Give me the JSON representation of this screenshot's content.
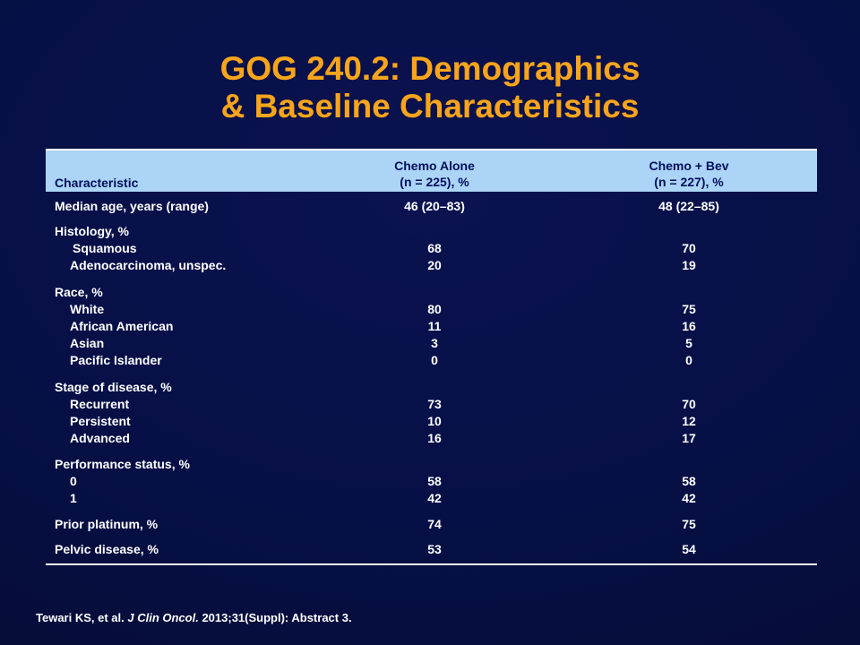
{
  "slide": {
    "title_line1": "GOG 240.2: Demographics",
    "title_line2": "& Baseline Characteristics"
  },
  "table": {
    "header": {
      "characteristic": "Characteristic",
      "col1_line1": "Chemo Alone",
      "col1_line2": "(n = 225), %",
      "col2_line1": "Chemo + Bev",
      "col2_line2": "(n = 227), %"
    },
    "rows": [
      {
        "label": "Median age, years (range)",
        "v1": "46 (20–83)",
        "v2": "48 (22–85)"
      },
      {
        "label": "Histology, %",
        "v1": "",
        "v2": ""
      },
      {
        "label": "Squamous",
        "v1": "68",
        "v2": "70"
      },
      {
        "label": "Adenocarcinoma, unspec.",
        "v1": "20",
        "v2": "19"
      },
      {
        "label": "Race, %",
        "v1": "",
        "v2": ""
      },
      {
        "label": "White",
        "v1": "80",
        "v2": "75"
      },
      {
        "label": "African American",
        "v1": "11",
        "v2": "16"
      },
      {
        "label": "Asian",
        "v1": "3",
        "v2": "5"
      },
      {
        "label": "Pacific Islander",
        "v1": "0",
        "v2": "0"
      },
      {
        "label": "Stage of disease, %",
        "v1": "",
        "v2": ""
      },
      {
        "label": "Recurrent",
        "v1": "73",
        "v2": "70"
      },
      {
        "label": "Persistent",
        "v1": "10",
        "v2": "12"
      },
      {
        "label": "Advanced",
        "v1": "16",
        "v2": "17"
      },
      {
        "label": "Performance status, %",
        "v1": "",
        "v2": ""
      },
      {
        "label": "0",
        "v1": "58",
        "v2": "58"
      },
      {
        "label": "1",
        "v1": "42",
        "v2": "42"
      },
      {
        "label": "Prior platinum, %",
        "v1": "74",
        "v2": "75"
      },
      {
        "label": "Pelvic disease, %",
        "v1": "53",
        "v2": "54"
      }
    ]
  },
  "footer": {
    "authors": "Tewari KS, et al. ",
    "journal": "J Clin Oncol.",
    "details": " 2013;31(Suppl): Abstract 3."
  }
}
